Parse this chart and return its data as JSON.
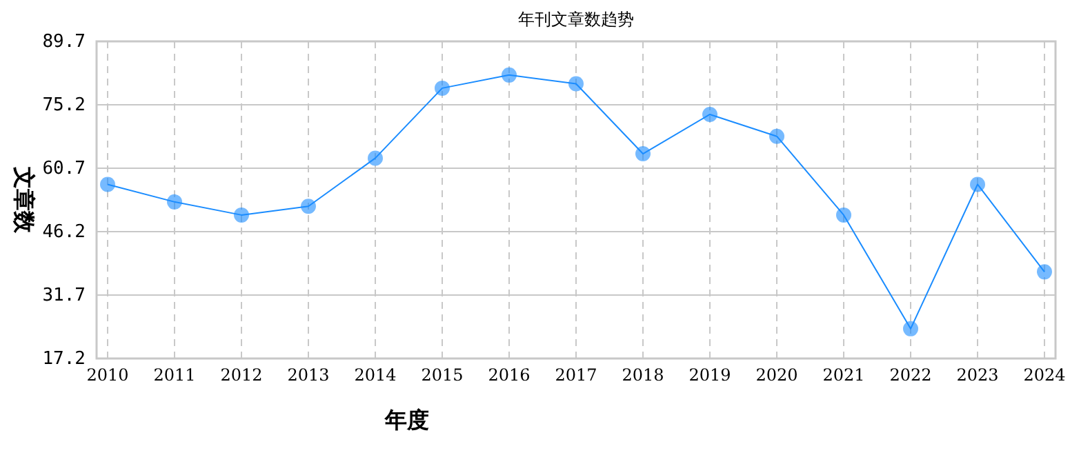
{
  "chart_data": {
    "type": "line",
    "title": "年刊文章数趋势",
    "xlabel": "年度",
    "ylabel": "文章数",
    "categories": [
      "2010",
      "2011",
      "2012",
      "2013",
      "2014",
      "2015",
      "2016",
      "2017",
      "2018",
      "2019",
      "2020",
      "2021",
      "2022",
      "2023",
      "2024"
    ],
    "series": [
      {
        "color": "#1a8cff",
        "values": [
          57,
          53,
          50,
          52,
          63,
          79,
          82,
          80,
          64,
          73,
          68,
          50,
          24,
          57,
          37
        ]
      }
    ],
    "ylim": [
      17.2,
      89.7
    ],
    "yticks": [
      17.2,
      31.7,
      46.2,
      60.7,
      75.2,
      89.7
    ],
    "grid": true,
    "marker": "circle",
    "line_style": "solid"
  }
}
